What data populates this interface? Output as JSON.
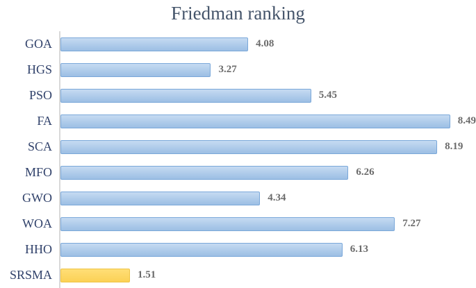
{
  "chart_data": {
    "type": "bar",
    "orientation": "horizontal",
    "title": "Friedman ranking",
    "categories": [
      "GOA",
      "HGS",
      "PSO",
      "FA",
      "SCA",
      "MFO",
      "GWO",
      "WOA",
      "HHO",
      "SRSMA"
    ],
    "values": [
      4.08,
      3.27,
      5.45,
      8.49,
      8.19,
      6.26,
      4.34,
      7.27,
      6.13,
      1.51
    ],
    "value_labels": [
      "4.08",
      "3.27",
      "5.45",
      "8.49",
      "8.19",
      "6.26",
      "4.34",
      "7.27",
      "6.13",
      "1.51"
    ],
    "highlighted_category": "SRSMA",
    "xlabel": "",
    "ylabel": "",
    "xlim": [
      0,
      9.06
    ],
    "grid": false,
    "legend": false,
    "colors": {
      "bar_fill_top": "#C6DBF2",
      "bar_fill_bottom": "#9DBFE4",
      "bar_border": "#79A7D9",
      "highlight_fill_top": "#FFDE76",
      "highlight_fill_bottom": "#FBD156",
      "highlight_border": "#EFC445",
      "title_text": "#44546A",
      "category_text": "#31426B",
      "value_text": "#6B6B6B",
      "axis_line": "#D9D9D9"
    }
  }
}
